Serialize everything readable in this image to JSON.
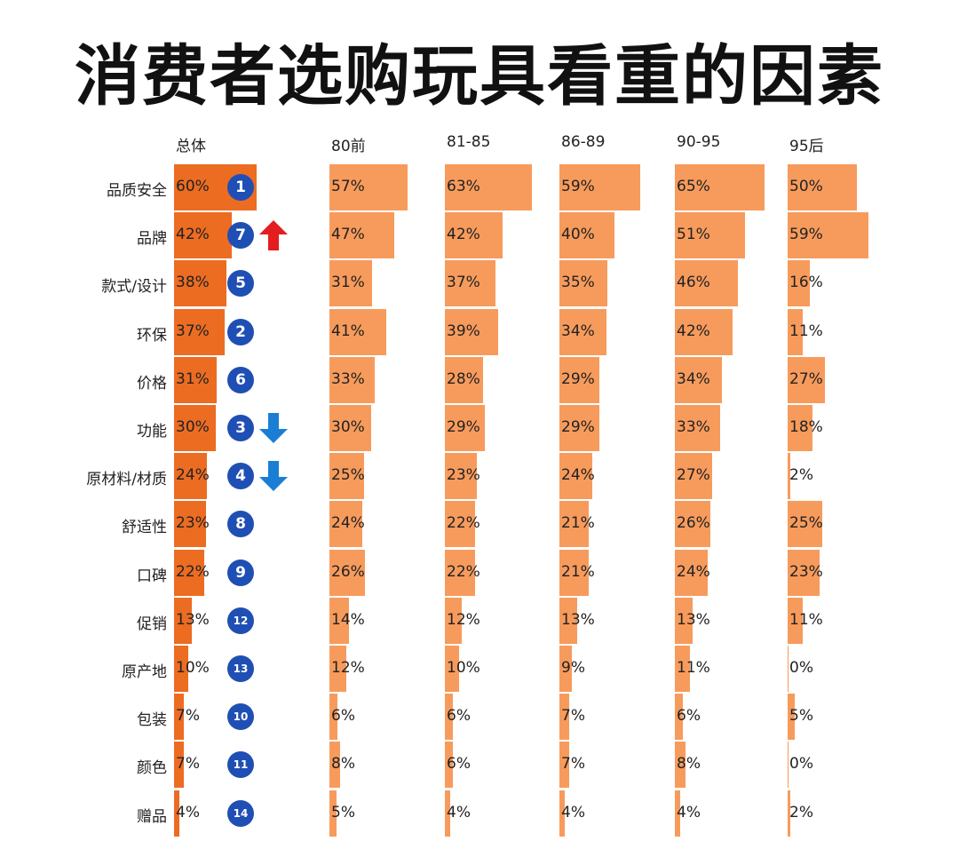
{
  "title": "消费者选购玩具看重的因素",
  "colors": {
    "total": "#ec6c22",
    "segment": "#f79b5c",
    "up": "#e31e1e",
    "down": "#1a7fd4",
    "rank": "#1f4fb4"
  },
  "chart_data": {
    "type": "bar",
    "title": "消费者选购玩具看重的因素",
    "orientation": "horizontal",
    "categories": [
      "品质安全",
      "品牌",
      "款式/设计",
      "环保",
      "价格",
      "功能",
      "原材料/材质",
      "舒适性",
      "口碑",
      "促销",
      "原产地",
      "包装",
      "颜色",
      "赠品"
    ],
    "series": [
      {
        "name": "总体",
        "values": [
          60,
          42,
          38,
          37,
          31,
          30,
          24,
          23,
          22,
          13,
          10,
          7,
          7,
          4
        ]
      },
      {
        "name": "80前",
        "values": [
          57,
          47,
          31,
          41,
          33,
          30,
          25,
          24,
          26,
          14,
          12,
          6,
          8,
          5
        ]
      },
      {
        "name": "81-85",
        "values": [
          63,
          42,
          37,
          39,
          28,
          29,
          23,
          22,
          22,
          12,
          10,
          6,
          6,
          4
        ]
      },
      {
        "name": "86-89",
        "values": [
          59,
          40,
          35,
          34,
          29,
          29,
          24,
          21,
          21,
          13,
          9,
          7,
          7,
          4
        ]
      },
      {
        "name": "90-95",
        "values": [
          65,
          51,
          46,
          42,
          34,
          33,
          27,
          26,
          24,
          13,
          11,
          6,
          8,
          4
        ]
      },
      {
        "name": "95后",
        "values": [
          50,
          59,
          16,
          11,
          27,
          18,
          2,
          25,
          23,
          11,
          0,
          5,
          0,
          2
        ]
      }
    ],
    "value_labels": {
      "总体": [
        "60%",
        "42%",
        "38%",
        "37%",
        "31%",
        "30%",
        "24%",
        "23%",
        "22%",
        "13%",
        "10%",
        "7%",
        "7%",
        "4%"
      ],
      "80前": [
        "57%",
        "47%",
        "31%",
        "41%",
        "33%",
        "30%",
        "25%",
        "24%",
        "26%",
        "14%",
        "12%",
        "6%",
        "8%",
        "5%"
      ],
      "81-85": [
        "63%",
        "42%",
        "37%",
        "39%",
        "28%",
        "29%",
        "23%",
        "22%",
        "22%",
        "12%",
        "10%",
        "6%",
        "6%",
        "4%"
      ],
      "86-89": [
        "59%",
        "40%",
        "35%",
        "34%",
        "29%",
        "29%",
        "24%",
        "21%",
        "21%",
        "13%",
        "9%",
        "7%",
        "7%",
        "4%"
      ],
      "90-95": [
        "65%",
        "51%",
        "46%",
        "42%",
        "34%",
        "33%",
        "27%",
        "26%",
        "24%",
        "13%",
        "11%",
        "6%",
        "8%",
        "4%"
      ],
      "95后": [
        "50%",
        "59%",
        "16%",
        "11%",
        "27%",
        "18%",
        "2%",
        "25%",
        "23%",
        "11%",
        "0%",
        "5%",
        "0%",
        "2%"
      ]
    },
    "ranks": [
      "1",
      "7",
      "5",
      "2",
      "6",
      "3",
      "4",
      "8",
      "9",
      "12",
      "13",
      "10",
      "11",
      "14"
    ],
    "rank_change": [
      "",
      "up",
      "",
      "",
      "",
      "down",
      "down",
      "",
      "",
      "",
      "",
      "",
      "",
      ""
    ],
    "xlim": [
      0,
      100
    ],
    "grid": false,
    "legend": "none"
  }
}
